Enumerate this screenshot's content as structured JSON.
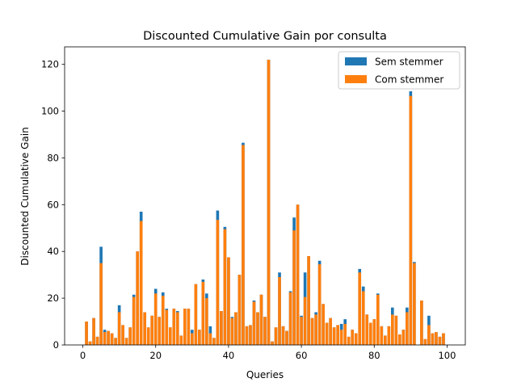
{
  "chart_data": {
    "type": "bar",
    "title": "Discounted Cumulative Gain por consulta",
    "xlabel": "Queries",
    "ylabel": "Discounted Cumulative Gain",
    "xlim": [
      -5,
      105
    ],
    "ylim": [
      0,
      127.5
    ],
    "xticks": [
      0,
      20,
      40,
      60,
      80,
      100
    ],
    "yticks": [
      0,
      20,
      40,
      60,
      80,
      100,
      120
    ],
    "legend_position": "top-right",
    "x": [
      1,
      2,
      3,
      4,
      5,
      6,
      7,
      8,
      9,
      10,
      11,
      12,
      13,
      14,
      15,
      16,
      17,
      18,
      19,
      20,
      21,
      22,
      23,
      24,
      25,
      26,
      27,
      28,
      29,
      30,
      31,
      32,
      33,
      34,
      35,
      36,
      37,
      38,
      39,
      40,
      41,
      42,
      43,
      44,
      45,
      46,
      47,
      48,
      49,
      50,
      51,
      52,
      53,
      54,
      55,
      56,
      57,
      58,
      59,
      60,
      61,
      62,
      63,
      64,
      65,
      66,
      67,
      68,
      69,
      70,
      71,
      72,
      73,
      74,
      75,
      76,
      77,
      78,
      79,
      80,
      81,
      82,
      83,
      84,
      85,
      86,
      87,
      88,
      89,
      90,
      91,
      92,
      93,
      94,
      95,
      96,
      97,
      98,
      99,
      100
    ],
    "series": [
      {
        "name": "Sem stemmer",
        "color": "#1f77b4",
        "values": [
          10,
          1.5,
          11.5,
          3.5,
          42,
          6.5,
          6,
          5,
          3,
          17,
          8.5,
          3,
          7.5,
          21.5,
          40,
          57,
          14,
          7.5,
          12.5,
          24,
          12,
          22.5,
          15.5,
          7.5,
          15.5,
          14.5,
          4,
          15.5,
          15.5,
          6.5,
          26,
          6.5,
          28,
          22,
          8,
          3,
          57.5,
          14.5,
          50.5,
          37.5,
          12,
          14,
          30,
          86.5,
          8,
          8.5,
          19,
          14,
          21.5,
          12,
          122,
          1.5,
          7.5,
          31,
          8,
          6,
          23,
          54.5,
          60,
          12.5,
          31,
          38,
          11.5,
          14,
          36,
          17.5,
          9.5,
          11.5,
          7.5,
          8.5,
          9,
          11,
          3.5,
          6.5,
          5,
          32.5,
          25,
          13,
          9.5,
          11,
          22,
          8,
          4,
          8,
          16,
          12.5,
          4.5,
          6.5,
          16,
          108.5,
          35.5,
          0,
          19,
          2.5,
          12.5,
          5,
          5.5,
          3.5,
          5,
          0
        ],
        "note": ""
      },
      {
        "name": "Com stemmer",
        "color": "#ff7f0e",
        "values": [
          10,
          1.5,
          11.5,
          3.5,
          35,
          5.5,
          6,
          5,
          3,
          14,
          8.5,
          3,
          7.5,
          20.5,
          40,
          53,
          14,
          7.5,
          12.5,
          22,
          12,
          21,
          15,
          7.5,
          15.5,
          14,
          4,
          15.5,
          15.5,
          5,
          26,
          6.5,
          27,
          20,
          5,
          3,
          53.5,
          14.5,
          49.5,
          37.5,
          11.5,
          14,
          30,
          85.5,
          8,
          8.5,
          18.5,
          14,
          21.5,
          12,
          122,
          1.5,
          7.5,
          29,
          8,
          6,
          22.5,
          49,
          60,
          12,
          20.5,
          38,
          11.5,
          13,
          34.5,
          17.5,
          9.5,
          11.5,
          7.5,
          8.5,
          6.5,
          9,
          3.5,
          6.5,
          5,
          31,
          23,
          13,
          9.5,
          11,
          21.5,
          8,
          4,
          8,
          13,
          12.5,
          4.5,
          6.5,
          14,
          106.5,
          35,
          0,
          19,
          2.5,
          8.5,
          5,
          5.5,
          3.5,
          5,
          0
        ]
      }
    ]
  }
}
